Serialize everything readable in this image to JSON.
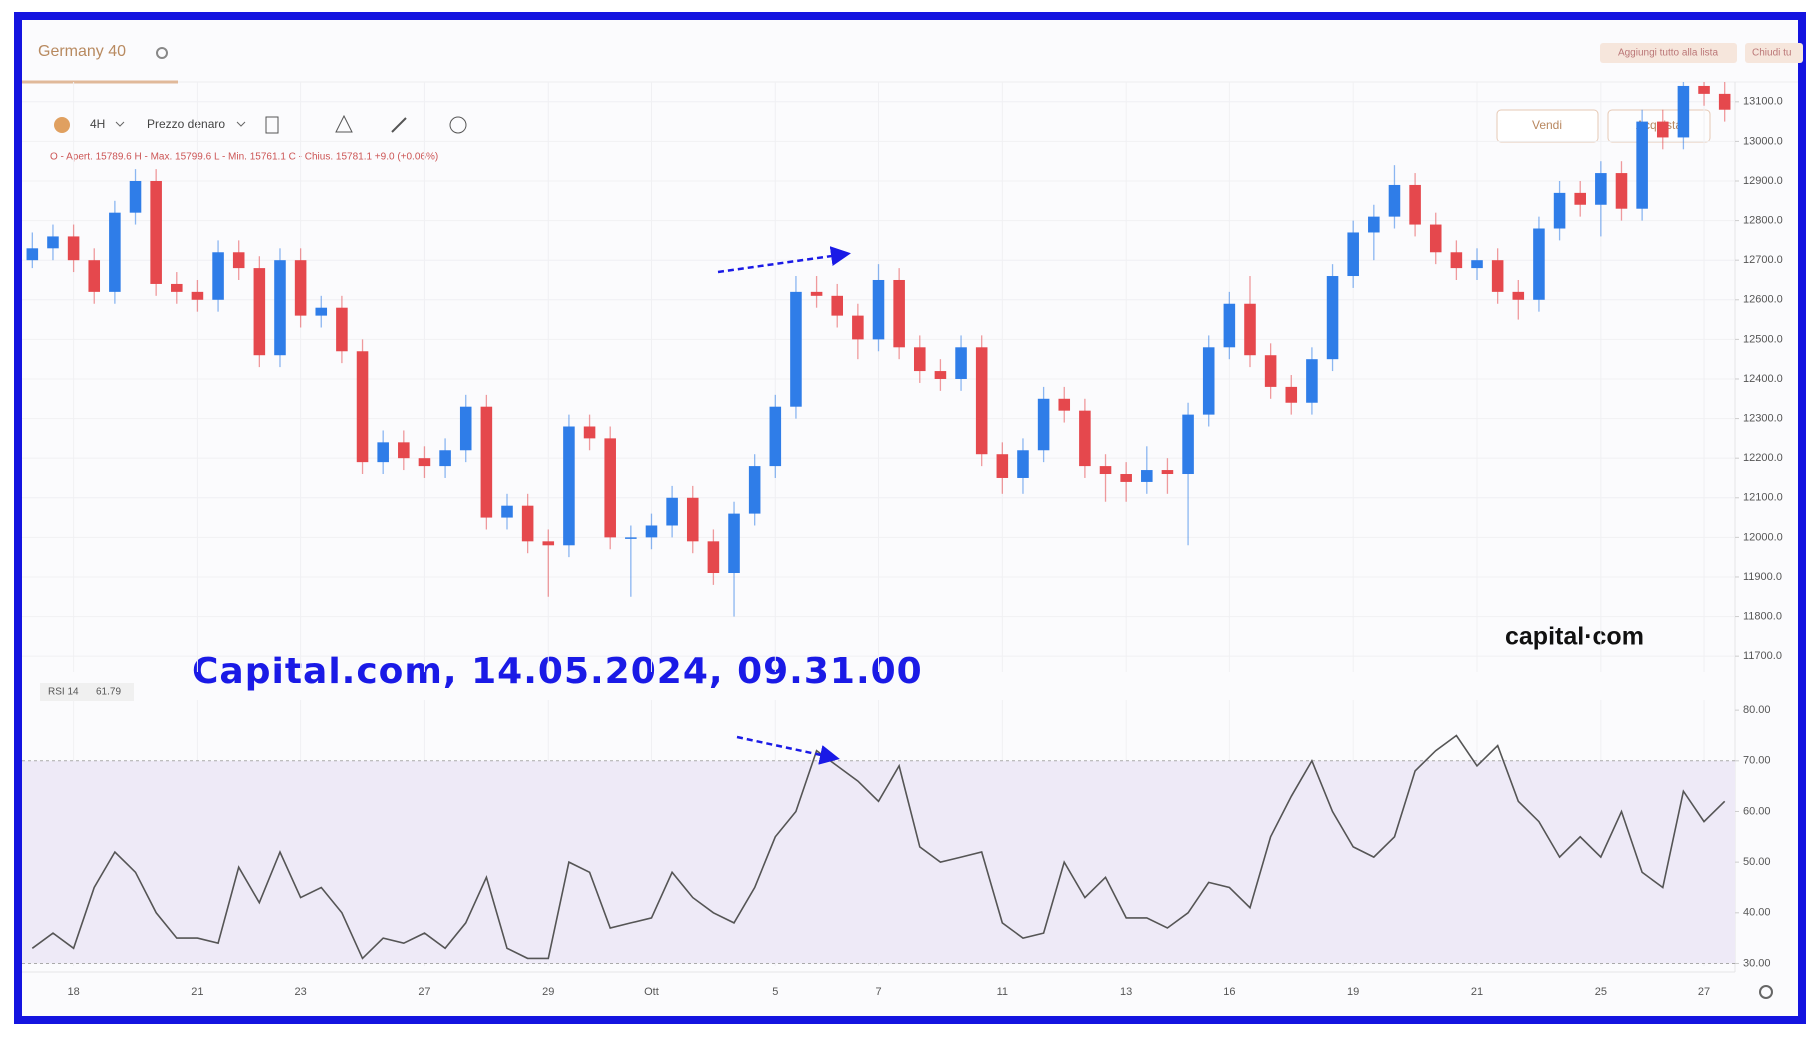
{
  "ui": {
    "tab_title": "Germany 40",
    "interval": "4H",
    "price_type": "Prezzo denaro",
    "ohlc_header": "O - Apert. 15789.6  H - Max. 15799.6  L - Min. 15761.1  C - Chius. 15781.1  +9.0 (+0.06%)",
    "sell": "Vendi",
    "buy": "Acquista",
    "add_all": "Aggiungi tutto alla lista",
    "close_all": "Chiudi tu",
    "rsi_label": "RSI 14",
    "rsi_value": 61.79,
    "watermark": "Capital.com, 14.05.2024, 09.31.00",
    "logo": "capital·com"
  },
  "chart_data": [
    {
      "type": "candlestick",
      "colors": {
        "up": "#2f7de8",
        "down": "#e5484d"
      },
      "grid": true,
      "categories": [
        null,
        null,
        "18",
        null,
        null,
        null,
        null,
        null,
        "21",
        null,
        null,
        null,
        null,
        "23",
        null,
        null,
        null,
        null,
        null,
        "27",
        null,
        null,
        null,
        null,
        null,
        "29",
        null,
        null,
        null,
        null,
        "Ott",
        null,
        null,
        null,
        null,
        null,
        "5",
        null,
        null,
        null,
        null,
        "7",
        null,
        null,
        null,
        null,
        null,
        "11",
        null,
        null,
        null,
        null,
        null,
        "13",
        null,
        null,
        null,
        null,
        "16",
        null,
        null,
        null,
        null,
        null,
        "19",
        null,
        null,
        null,
        null,
        null,
        "21",
        null,
        null,
        null,
        null,
        null,
        "25",
        null,
        null,
        null,
        null,
        "27",
        null
      ],
      "candles": [
        [
          12700,
          12770,
          12680,
          12730
        ],
        [
          12730,
          12790,
          12700,
          12760
        ],
        [
          12760,
          12790,
          12670,
          12700
        ],
        [
          12700,
          12730,
          12590,
          12620
        ],
        [
          12620,
          12850,
          12590,
          12820
        ],
        [
          12820,
          12930,
          12790,
          12900
        ],
        [
          12900,
          12930,
          12610,
          12640
        ],
        [
          12640,
          12670,
          12590,
          12620
        ],
        [
          12620,
          12650,
          12570,
          12600
        ],
        [
          12600,
          12750,
          12570,
          12720
        ],
        [
          12720,
          12750,
          12650,
          12680
        ],
        [
          12680,
          12710,
          12430,
          12460
        ],
        [
          12460,
          12730,
          12430,
          12700
        ],
        [
          12700,
          12730,
          12530,
          12560
        ],
        [
          12560,
          12610,
          12530,
          12580
        ],
        [
          12580,
          12610,
          12440,
          12470
        ],
        [
          12470,
          12500,
          12160,
          12190
        ],
        [
          12190,
          12270,
          12160,
          12240
        ],
        [
          12240,
          12270,
          12170,
          12200
        ],
        [
          12200,
          12230,
          12150,
          12180
        ],
        [
          12180,
          12250,
          12150,
          12220
        ],
        [
          12220,
          12360,
          12190,
          12330
        ],
        [
          12330,
          12360,
          12020,
          12050
        ],
        [
          12050,
          12110,
          12020,
          12080
        ],
        [
          12080,
          12110,
          11960,
          11990
        ],
        [
          11990,
          12020,
          11850,
          11980
        ],
        [
          11980,
          12310,
          11950,
          12280
        ],
        [
          12280,
          12310,
          12220,
          12250
        ],
        [
          12250,
          12280,
          11970,
          12000
        ],
        [
          12000,
          12030,
          11850,
          12000
        ],
        [
          12000,
          12060,
          11970,
          12030
        ],
        [
          12030,
          12130,
          12000,
          12100
        ],
        [
          12100,
          12130,
          11960,
          11990
        ],
        [
          11990,
          12020,
          11880,
          11910
        ],
        [
          11910,
          12090,
          11800,
          12060
        ],
        [
          12060,
          12210,
          12030,
          12180
        ],
        [
          12180,
          12360,
          12150,
          12330
        ],
        [
          12330,
          12660,
          12300,
          12620
        ],
        [
          12620,
          12660,
          12580,
          12610
        ],
        [
          12610,
          12640,
          12530,
          12560
        ],
        [
          12560,
          12590,
          12450,
          12500
        ],
        [
          12500,
          12690,
          12470,
          12650
        ],
        [
          12650,
          12680,
          12450,
          12480
        ],
        [
          12480,
          12510,
          12390,
          12420
        ],
        [
          12420,
          12450,
          12370,
          12400
        ],
        [
          12400,
          12510,
          12370,
          12480
        ],
        [
          12480,
          12510,
          12180,
          12210
        ],
        [
          12210,
          12240,
          12110,
          12150
        ],
        [
          12150,
          12250,
          12110,
          12220
        ],
        [
          12220,
          12380,
          12190,
          12350
        ],
        [
          12350,
          12380,
          12290,
          12320
        ],
        [
          12320,
          12350,
          12150,
          12180
        ],
        [
          12180,
          12210,
          12090,
          12160
        ],
        [
          12160,
          12190,
          12090,
          12140
        ],
        [
          12140,
          12230,
          12110,
          12170
        ],
        [
          12170,
          12200,
          12110,
          12160
        ],
        [
          12160,
          12340,
          11980,
          12310
        ],
        [
          12310,
          12510,
          12280,
          12480
        ],
        [
          12480,
          12620,
          12450,
          12590
        ],
        [
          12590,
          12660,
          12430,
          12460
        ],
        [
          12460,
          12490,
          12350,
          12380
        ],
        [
          12380,
          12410,
          12310,
          12340
        ],
        [
          12340,
          12480,
          12310,
          12450
        ],
        [
          12450,
          12690,
          12420,
          12660
        ],
        [
          12660,
          12800,
          12630,
          12770
        ],
        [
          12770,
          12840,
          12700,
          12810
        ],
        [
          12810,
          12940,
          12780,
          12890
        ],
        [
          12890,
          12920,
          12760,
          12790
        ],
        [
          12790,
          12820,
          12690,
          12720
        ],
        [
          12720,
          12750,
          12650,
          12680
        ],
        [
          12680,
          12730,
          12650,
          12700
        ],
        [
          12700,
          12730,
          12590,
          12620
        ],
        [
          12620,
          12650,
          12550,
          12600
        ],
        [
          12600,
          12810,
          12570,
          12780
        ],
        [
          12780,
          12900,
          12750,
          12870
        ],
        [
          12870,
          12900,
          12810,
          12840
        ],
        [
          12840,
          12950,
          12760,
          12920
        ],
        [
          12920,
          12950,
          12800,
          12830
        ],
        [
          12830,
          13080,
          12800,
          13050
        ],
        [
          13050,
          13080,
          12980,
          13010
        ],
        [
          13010,
          13170,
          12980,
          13140
        ],
        [
          13140,
          13170,
          13090,
          13120
        ],
        [
          13120,
          13150,
          13050,
          13080
        ]
      ],
      "ylim": [
        11660,
        13150
      ],
      "yticks": [
        {
          "value": 11700,
          "label": "11700.0"
        },
        {
          "value": 11800,
          "label": "11800.0"
        },
        {
          "value": 11900,
          "label": "11900.0"
        },
        {
          "value": 12000,
          "label": "12000.0"
        },
        {
          "value": 12100,
          "label": "12100.0"
        },
        {
          "value": 12200,
          "label": "12200.0"
        },
        {
          "value": 12300,
          "label": "12300.0"
        },
        {
          "value": 12400,
          "label": "12400.0"
        },
        {
          "value": 12500,
          "label": "12500.0"
        },
        {
          "value": 12600,
          "label": "12600.0"
        },
        {
          "value": 12700,
          "label": "12700.0"
        },
        {
          "value": 12800,
          "label": "12800.0"
        },
        {
          "value": 12900,
          "label": "12900.0"
        },
        {
          "value": 13000,
          "label": "13000.0"
        },
        {
          "value": 13100,
          "label": "13100.0"
        }
      ]
    },
    {
      "type": "line",
      "color": "#555555",
      "grid": false,
      "band": [
        30,
        70
      ],
      "band_color": "#eeeaf7",
      "values": [
        33,
        36,
        33,
        45,
        52,
        48,
        40,
        35,
        35,
        34,
        49,
        42,
        52,
        43,
        45,
        40,
        31,
        35,
        34,
        36,
        33,
        38,
        47,
        33,
        31,
        31,
        50,
        48,
        37,
        38,
        39,
        48,
        43,
        40,
        38,
        45,
        55,
        60,
        72,
        69,
        66,
        62,
        69,
        53,
        50,
        51,
        52,
        38,
        35,
        36,
        50,
        43,
        47,
        39,
        39,
        37,
        40,
        46,
        45,
        41,
        55,
        63,
        70,
        60,
        53,
        51,
        55,
        68,
        72,
        75,
        69,
        73,
        62,
        58,
        51,
        55,
        51,
        60,
        48,
        45,
        64,
        58,
        62
      ],
      "ylim": [
        29.5,
        82
      ],
      "yticks": [
        {
          "value": 30,
          "label": "30.00"
        },
        {
          "value": 40,
          "label": "40.00"
        },
        {
          "value": 50,
          "label": "50.00"
        },
        {
          "value": 60,
          "label": "60.00"
        },
        {
          "value": 70,
          "label": "70.00"
        },
        {
          "value": 80,
          "label": "80.00"
        }
      ]
    }
  ]
}
